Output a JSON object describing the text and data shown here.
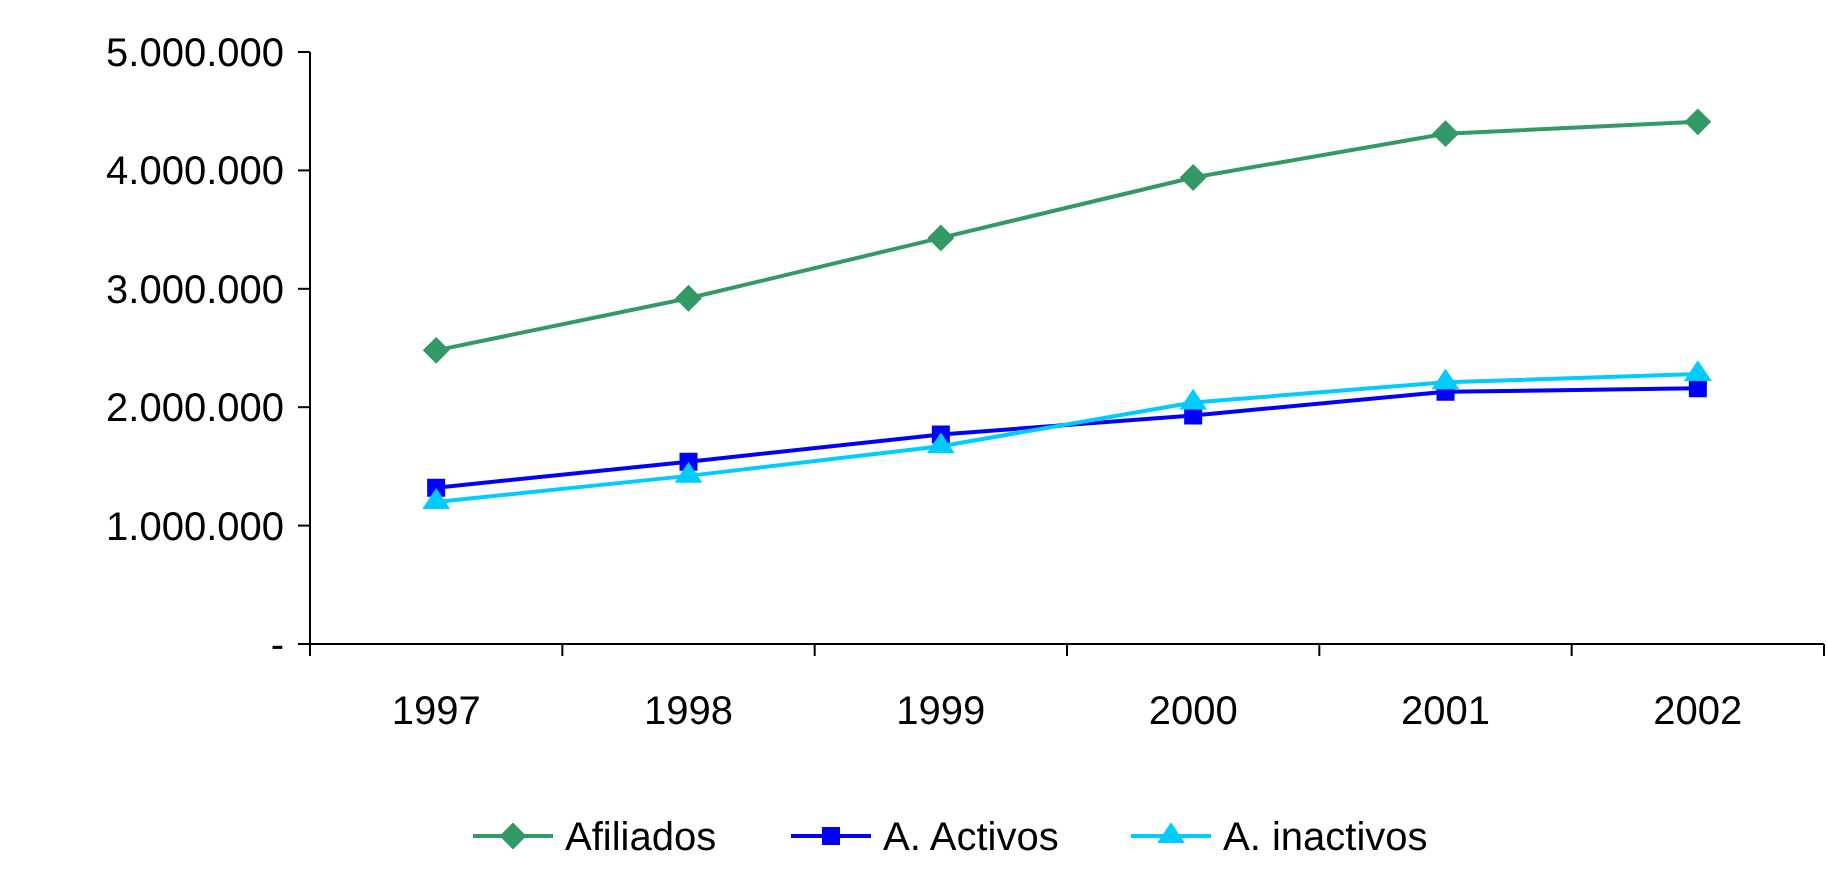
{
  "chart_data": {
    "type": "line",
    "categories": [
      "1997",
      "1998",
      "1999",
      "2000",
      "2001",
      "2002"
    ],
    "series": [
      {
        "name": "Afiliados",
        "color": "#339966",
        "marker": "diamond",
        "values": [
          2480000,
          2920000,
          3430000,
          3940000,
          4310000,
          4410000
        ]
      },
      {
        "name": "A. Activos",
        "color": "#0000ff",
        "marker": "square",
        "values": [
          1320000,
          1540000,
          1770000,
          1930000,
          2130000,
          2160000
        ]
      },
      {
        "name": "A. inactivos",
        "color": "#00ccff",
        "marker": "triangle",
        "values": [
          1200000,
          1420000,
          1670000,
          2040000,
          2210000,
          2280000
        ]
      }
    ],
    "ylim": [
      0,
      5000000
    ],
    "yticks": [
      {
        "value": 0,
        "label": "-"
      },
      {
        "value": 1000000,
        "label": "1.000.000"
      },
      {
        "value": 2000000,
        "label": "2.000.000"
      },
      {
        "value": 3000000,
        "label": "3.000.000"
      },
      {
        "value": 4000000,
        "label": "4.000.000"
      },
      {
        "value": 5000000,
        "label": "5.000.000"
      }
    ],
    "grid": false,
    "legend": "bottom",
    "line_style": "solid"
  }
}
